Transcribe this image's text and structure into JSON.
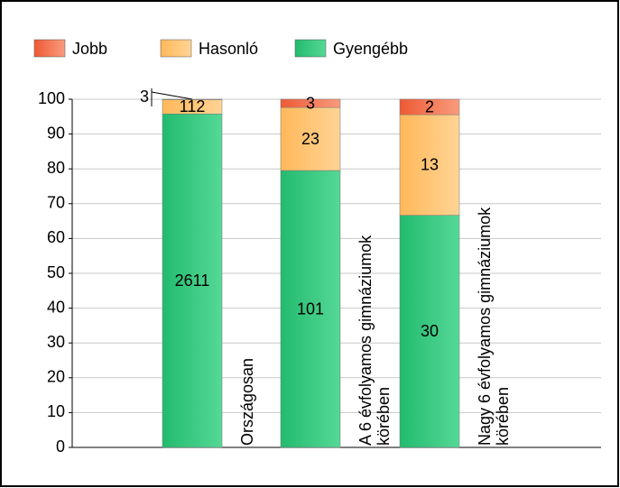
{
  "chart_data": {
    "type": "bar",
    "stacking": "percent",
    "categories": [
      "Országosan",
      "A 6 évfolyamos gimnáziumok körében",
      "Nagy 6 évfolyamos gimnáziumok körében"
    ],
    "series": [
      {
        "name": "Gyengébb",
        "color": "#2ec47a",
        "values": [
          2611,
          101,
          30
        ]
      },
      {
        "name": "Hasonló",
        "color": "#ffc070",
        "values": [
          112,
          23,
          13
        ]
      },
      {
        "name": "Jobb",
        "color": "#f3764e",
        "values": [
          3,
          3,
          2
        ]
      }
    ],
    "legend_order": [
      2,
      1,
      0
    ],
    "ylim": [
      0,
      100
    ],
    "yticks": [
      0,
      10,
      20,
      30,
      40,
      50,
      60,
      70,
      80,
      90,
      100
    ],
    "grid": true
  }
}
